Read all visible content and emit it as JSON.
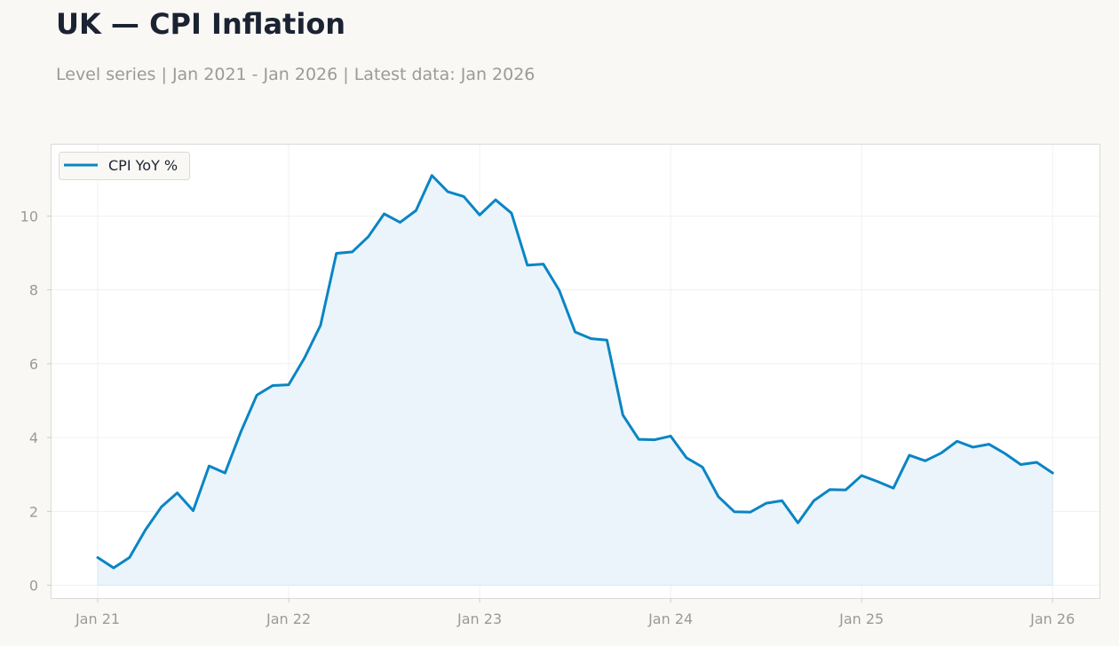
{
  "title": "UK — CPI Inflation",
  "subtitle": "Level series | Jan 2021 - Jan 2026 | Latest data: Jan 2026",
  "colors": {
    "line": "#0a85c4",
    "fill": "#ebf4fb",
    "grid": "#eeeeee",
    "axis_text": "#9a9a9a",
    "background": "#f9f8f5",
    "plot_background": "#ffffff"
  },
  "chart_data": {
    "type": "area",
    "x_tick_labels": [
      "Jan 21",
      "Jan 22",
      "Jan 23",
      "Jan 24",
      "Jan 25",
      "Jan 26"
    ],
    "y_ticks": [
      0,
      2,
      4,
      6,
      8,
      10
    ],
    "ylim": [
      -0.35,
      11.85
    ],
    "xlim": [
      "Nov 2020",
      "Mar 2026"
    ],
    "grid": true,
    "legend_position": "top-left",
    "series": [
      {
        "name": "CPI YoY %",
        "x": [
          "2021-01",
          "2021-02",
          "2021-03",
          "2021-04",
          "2021-05",
          "2021-06",
          "2021-07",
          "2021-08",
          "2021-09",
          "2021-10",
          "2021-11",
          "2021-12",
          "2022-01",
          "2022-02",
          "2022-03",
          "2022-04",
          "2022-05",
          "2022-06",
          "2022-07",
          "2022-08",
          "2022-09",
          "2022-10",
          "2022-11",
          "2022-12",
          "2023-01",
          "2023-02",
          "2023-03",
          "2023-04",
          "2023-05",
          "2023-06",
          "2023-07",
          "2023-08",
          "2023-09",
          "2023-10",
          "2023-11",
          "2023-12",
          "2024-01",
          "2024-02",
          "2024-03",
          "2024-04",
          "2024-05",
          "2024-06",
          "2024-07",
          "2024-08",
          "2024-09",
          "2024-10",
          "2024-11",
          "2024-12",
          "2025-01",
          "2025-02",
          "2025-03",
          "2025-04",
          "2025-05",
          "2025-06",
          "2025-07",
          "2025-08",
          "2025-09",
          "2025-10",
          "2025-11",
          "2025-12",
          "2026-01"
        ],
        "values": [
          0.75,
          0.47,
          0.75,
          1.5,
          2.12,
          2.5,
          2.02,
          3.23,
          3.04,
          4.16,
          5.15,
          5.41,
          5.43,
          6.16,
          7.04,
          8.99,
          9.03,
          9.44,
          10.06,
          9.83,
          10.15,
          11.1,
          10.66,
          10.53,
          10.03,
          10.44,
          10.08,
          8.67,
          8.7,
          7.99,
          6.86,
          6.68,
          6.64,
          4.61,
          3.95,
          3.94,
          4.04,
          3.45,
          3.2,
          2.4,
          1.99,
          1.98,
          2.22,
          2.29,
          1.69,
          2.29,
          2.59,
          2.58,
          2.97,
          2.81,
          2.63,
          3.52,
          3.37,
          3.58,
          3.9,
          3.74,
          3.82,
          3.57,
          3.27,
          3.33,
          3.04
        ]
      }
    ]
  }
}
